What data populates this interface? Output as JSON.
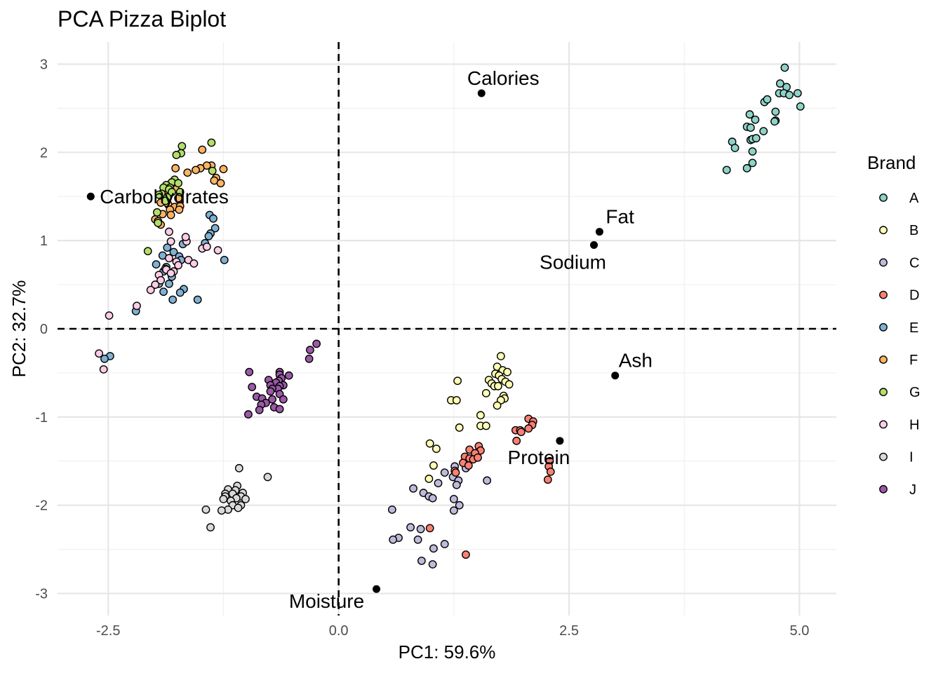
{
  "chart_data": {
    "type": "scatter",
    "title": "PCA Pizza Biplot",
    "xlabel": "PC1: 59.6%",
    "ylabel": "PC2: 32.7%",
    "xlim": [
      -3.05,
      5.4
    ],
    "ylim": [
      -3.25,
      3.25
    ],
    "x_ticks": [
      -2.5,
      0.0,
      2.5,
      5.0
    ],
    "x_tick_labels": [
      "-2.5",
      "0.0",
      "2.5",
      "5.0"
    ],
    "y_ticks": [
      -3,
      -2,
      -1,
      0,
      1,
      2,
      3
    ],
    "y_tick_labels": [
      "-3",
      "-2",
      "-1",
      "0",
      "1",
      "2",
      "3"
    ],
    "grid": true,
    "reference_lines": {
      "x": 0,
      "y": 0,
      "style": "dashed"
    },
    "legend": {
      "title": "Brand",
      "position": "right"
    },
    "variables": [
      {
        "name": "Calories",
        "x": 1.55,
        "y": 2.67
      },
      {
        "name": "Carbohydrates",
        "x": -2.69,
        "y": 1.5
      },
      {
        "name": "Fat",
        "x": 2.83,
        "y": 1.1
      },
      {
        "name": "Sodium",
        "x": 2.77,
        "y": 0.95
      },
      {
        "name": "Ash",
        "x": 3.0,
        "y": -0.53
      },
      {
        "name": "Protein",
        "x": 2.4,
        "y": -1.27
      },
      {
        "name": "Moisture",
        "x": 0.41,
        "y": -2.95
      }
    ],
    "series": [
      {
        "name": "A",
        "color": "#8DD3C7",
        "points": [
          [
            4.84,
            2.96
          ],
          [
            4.79,
            2.78
          ],
          [
            4.86,
            2.74
          ],
          [
            4.78,
            2.67
          ],
          [
            4.83,
            2.67
          ],
          [
            4.89,
            2.65
          ],
          [
            4.98,
            2.67
          ],
          [
            5.01,
            2.52
          ],
          [
            4.62,
            2.57
          ],
          [
            4.65,
            2.6
          ],
          [
            4.46,
            2.43
          ],
          [
            4.52,
            2.37
          ],
          [
            4.74,
            2.46
          ],
          [
            4.74,
            2.36
          ],
          [
            4.73,
            2.35
          ],
          [
            4.61,
            2.24
          ],
          [
            4.43,
            2.29
          ],
          [
            4.47,
            2.28
          ],
          [
            4.47,
            2.14
          ],
          [
            4.49,
            2.15
          ],
          [
            4.53,
            2.16
          ],
          [
            4.27,
            2.12
          ],
          [
            4.3,
            2.05
          ],
          [
            4.49,
            2.01
          ],
          [
            4.21,
            1.8
          ],
          [
            4.43,
            1.82
          ],
          [
            4.49,
            1.88
          ]
        ]
      },
      {
        "name": "B",
        "color": "#FFFFB3",
        "points": [
          [
            1.76,
            -0.31
          ],
          [
            1.72,
            -0.43
          ],
          [
            1.78,
            -0.47
          ],
          [
            1.83,
            -0.49
          ],
          [
            1.7,
            -0.51
          ],
          [
            1.74,
            -0.53
          ],
          [
            1.63,
            -0.58
          ],
          [
            1.77,
            -0.57
          ],
          [
            1.81,
            -0.6
          ],
          [
            1.66,
            -0.62
          ],
          [
            1.69,
            -0.65
          ],
          [
            1.73,
            -0.65
          ],
          [
            1.85,
            -0.63
          ],
          [
            1.29,
            -0.59
          ],
          [
            1.6,
            -0.73
          ],
          [
            1.79,
            -0.76
          ],
          [
            1.8,
            -0.79
          ],
          [
            1.76,
            -0.81
          ],
          [
            1.72,
            -0.87
          ],
          [
            1.22,
            -0.81
          ],
          [
            1.28,
            -0.81
          ],
          [
            1.54,
            -0.98
          ],
          [
            1.54,
            -1.1
          ],
          [
            1.6,
            -1.1
          ],
          [
            1.31,
            -1.12
          ],
          [
            0.99,
            -1.3
          ],
          [
            1.06,
            -1.36
          ],
          [
            1.03,
            -1.55
          ],
          [
            0.98,
            -1.7
          ]
        ]
      },
      {
        "name": "C",
        "color": "#BEBADA",
        "points": [
          [
            1.61,
            -1.72
          ],
          [
            1.26,
            -1.56
          ],
          [
            1.38,
            -1.58
          ],
          [
            1.15,
            -1.63
          ],
          [
            1.24,
            -1.68
          ],
          [
            1.3,
            -1.72
          ],
          [
            1.28,
            -1.77
          ],
          [
            1.08,
            -1.75
          ],
          [
            0.81,
            -1.81
          ],
          [
            0.92,
            -1.86
          ],
          [
            0.98,
            -1.9
          ],
          [
            1.02,
            -1.92
          ],
          [
            1.25,
            -1.93
          ],
          [
            1.31,
            -2.0
          ],
          [
            1.25,
            -2.06
          ],
          [
            0.58,
            -2.05
          ],
          [
            0.78,
            -2.25
          ],
          [
            0.89,
            -2.27
          ],
          [
            0.65,
            -2.37
          ],
          [
            0.59,
            -2.39
          ],
          [
            0.86,
            -2.39
          ],
          [
            1.15,
            -2.44
          ],
          [
            1.03,
            -2.49
          ],
          [
            0.9,
            -2.63
          ],
          [
            1.02,
            -2.67
          ]
        ]
      },
      {
        "name": "D",
        "color": "#FB8072",
        "points": [
          [
            2.06,
            -1.02
          ],
          [
            2.11,
            -1.05
          ],
          [
            2.1,
            -1.09
          ],
          [
            2.06,
            -1.13
          ],
          [
            1.92,
            -1.15
          ],
          [
            1.97,
            -1.15
          ],
          [
            1.98,
            -1.17
          ],
          [
            1.93,
            -1.27
          ],
          [
            1.52,
            -1.33
          ],
          [
            1.54,
            -1.38
          ],
          [
            1.42,
            -1.37
          ],
          [
            1.48,
            -1.41
          ],
          [
            1.37,
            -1.45
          ],
          [
            1.42,
            -1.47
          ],
          [
            1.46,
            -1.48
          ],
          [
            1.51,
            -1.46
          ],
          [
            1.35,
            -1.52
          ],
          [
            1.41,
            -1.55
          ],
          [
            2.29,
            -1.5
          ],
          [
            2.28,
            -1.56
          ],
          [
            2.3,
            -1.62
          ],
          [
            1.26,
            -1.61
          ],
          [
            1.27,
            -1.63
          ],
          [
            2.27,
            -1.71
          ],
          [
            0.99,
            -2.26
          ],
          [
            1.38,
            -2.56
          ]
        ]
      },
      {
        "name": "E",
        "color": "#80B1D3",
        "points": [
          [
            -1.4,
            1.29
          ],
          [
            -1.36,
            1.25
          ],
          [
            -1.34,
            1.14
          ],
          [
            -1.39,
            1.08
          ],
          [
            -1.41,
            1.05
          ],
          [
            -1.45,
            0.97
          ],
          [
            -1.69,
            0.96
          ],
          [
            -1.86,
            0.92
          ],
          [
            -1.79,
            0.87
          ],
          [
            -1.73,
            0.82
          ],
          [
            -1.91,
            0.83
          ],
          [
            -1.71,
            0.78
          ],
          [
            -1.24,
            0.78
          ],
          [
            -1.98,
            0.73
          ],
          [
            -1.87,
            0.7
          ],
          [
            -1.9,
            0.65
          ],
          [
            -1.81,
            0.59
          ],
          [
            -1.84,
            0.51
          ],
          [
            -1.95,
            0.51
          ],
          [
            -1.68,
            0.45
          ],
          [
            -1.9,
            0.42
          ],
          [
            -1.72,
            0.41
          ],
          [
            -1.8,
            0.33
          ],
          [
            -1.53,
            0.33
          ],
          [
            -2.2,
            0.2
          ],
          [
            -2.48,
            -0.31
          ],
          [
            -2.54,
            -0.34
          ]
        ]
      },
      {
        "name": "F",
        "color": "#FDB462",
        "points": [
          [
            -1.48,
            2.03
          ],
          [
            -1.38,
            1.85
          ],
          [
            -1.43,
            1.85
          ],
          [
            -1.5,
            1.82
          ],
          [
            -1.55,
            1.8
          ],
          [
            -1.64,
            1.77
          ],
          [
            -1.25,
            1.81
          ],
          [
            -1.77,
            1.82
          ],
          [
            -1.33,
            1.71
          ],
          [
            -1.35,
            1.68
          ],
          [
            -1.28,
            1.65
          ],
          [
            -1.81,
            1.66
          ],
          [
            -1.77,
            1.58
          ],
          [
            -1.85,
            1.55
          ],
          [
            -1.88,
            1.52
          ],
          [
            -1.74,
            1.48
          ],
          [
            -1.9,
            1.45
          ],
          [
            -1.93,
            1.43
          ],
          [
            -1.85,
            1.41
          ],
          [
            -1.78,
            1.38
          ],
          [
            -1.83,
            1.35
          ],
          [
            -1.72,
            1.39
          ],
          [
            -1.73,
            1.35
          ],
          [
            -1.91,
            1.3
          ],
          [
            -1.99,
            1.24
          ],
          [
            -1.96,
            1.22
          ],
          [
            -1.93,
            1.18
          ],
          [
            -1.82,
            1.29
          ]
        ]
      },
      {
        "name": "G",
        "color": "#B3DE69",
        "points": [
          [
            -1.38,
            2.11
          ],
          [
            -1.7,
            2.07
          ],
          [
            -1.71,
            1.99
          ],
          [
            -1.76,
            1.97
          ],
          [
            -1.37,
            1.79
          ],
          [
            -1.78,
            1.69
          ],
          [
            -1.81,
            1.66
          ],
          [
            -1.74,
            1.65
          ],
          [
            -1.87,
            1.63
          ],
          [
            -1.83,
            1.6
          ],
          [
            -1.9,
            1.6
          ],
          [
            -1.84,
            1.58
          ],
          [
            -1.81,
            1.55
          ],
          [
            -1.72,
            1.55
          ],
          [
            -1.92,
            1.53
          ],
          [
            -1.95,
            1.52
          ],
          [
            -1.86,
            1.49
          ],
          [
            -1.88,
            1.45
          ],
          [
            -1.97,
            1.32
          ],
          [
            -1.96,
            1.2
          ],
          [
            -2.07,
            0.88
          ]
        ]
      },
      {
        "name": "H",
        "color": "#FCCDE5",
        "points": [
          [
            -1.48,
            0.91
          ],
          [
            -1.65,
            0.99
          ],
          [
            -1.82,
            0.99
          ],
          [
            -1.84,
            1.1
          ],
          [
            -1.66,
            1.04
          ],
          [
            -1.31,
            0.89
          ],
          [
            -1.43,
            0.93
          ],
          [
            -1.84,
            0.8
          ],
          [
            -1.76,
            0.76
          ],
          [
            -1.63,
            0.78
          ],
          [
            -1.74,
            0.72
          ],
          [
            -1.57,
            0.74
          ],
          [
            -1.88,
            0.68
          ],
          [
            -1.87,
            0.67
          ],
          [
            -1.79,
            0.65
          ],
          [
            -1.95,
            0.61
          ],
          [
            -1.82,
            0.63
          ],
          [
            -1.93,
            0.55
          ],
          [
            -1.99,
            0.5
          ],
          [
            -2.04,
            0.44
          ],
          [
            -2.19,
            0.26
          ],
          [
            -2.49,
            0.15
          ],
          [
            -2.6,
            -0.28
          ],
          [
            -2.55,
            -0.46
          ]
        ]
      },
      {
        "name": "I",
        "color": "#D9D9D9",
        "points": [
          [
            -1.08,
            -1.58
          ],
          [
            -0.77,
            -1.68
          ],
          [
            -1.1,
            -1.78
          ],
          [
            -1.2,
            -1.82
          ],
          [
            -1.12,
            -1.83
          ],
          [
            -1.04,
            -1.86
          ],
          [
            -1.23,
            -1.87
          ],
          [
            -1.15,
            -1.87
          ],
          [
            -1.06,
            -1.9
          ],
          [
            -1.11,
            -1.92
          ],
          [
            -1.23,
            -1.9
          ],
          [
            -1.25,
            -1.93
          ],
          [
            -1.01,
            -1.93
          ],
          [
            -1.17,
            -1.95
          ],
          [
            -1.15,
            -2.0
          ],
          [
            -1.06,
            -2.0
          ],
          [
            -1.09,
            -2.03
          ],
          [
            -1.2,
            -2.05
          ],
          [
            -1.27,
            -2.06
          ],
          [
            -1.44,
            -2.05
          ],
          [
            -1.39,
            -2.25
          ]
        ]
      },
      {
        "name": "J",
        "color": "#9B59A8",
        "points": [
          [
            -0.24,
            -0.17
          ],
          [
            -0.31,
            -0.24
          ],
          [
            -0.32,
            -0.34
          ],
          [
            -0.54,
            -0.53
          ],
          [
            -0.64,
            -0.49
          ],
          [
            -0.64,
            -0.52
          ],
          [
            -0.97,
            -0.49
          ],
          [
            -0.62,
            -0.56
          ],
          [
            -0.76,
            -0.58
          ],
          [
            -0.65,
            -0.59
          ],
          [
            -0.68,
            -0.61
          ],
          [
            -0.74,
            -0.64
          ],
          [
            -0.6,
            -0.64
          ],
          [
            -0.64,
            -0.65
          ],
          [
            -0.94,
            -0.66
          ],
          [
            -0.66,
            -0.68
          ],
          [
            -0.72,
            -0.68
          ],
          [
            -0.74,
            -0.71
          ],
          [
            -0.64,
            -0.74
          ],
          [
            -0.89,
            -0.77
          ],
          [
            -0.83,
            -0.79
          ],
          [
            -0.6,
            -0.8
          ],
          [
            -0.72,
            -0.8
          ],
          [
            -0.79,
            -0.84
          ],
          [
            -0.84,
            -0.86
          ],
          [
            -0.7,
            -0.89
          ],
          [
            -0.64,
            -0.91
          ],
          [
            -0.86,
            -0.92
          ],
          [
            -0.98,
            -0.97
          ]
        ]
      }
    ]
  }
}
